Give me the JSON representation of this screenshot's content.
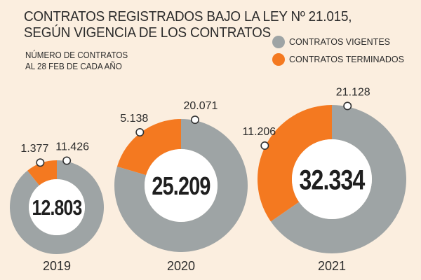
{
  "title_lines": [
    "CONTRATOS REGISTRADOS BAJO LA LEY Nº 21.015,",
    "SEGÚN VIGENCIA DE LOS CONTRATOS"
  ],
  "subtitle_lines": [
    "NÚMERO DE CONTRATOS",
    "AL 28 FEB DE CADA AÑO"
  ],
  "legend": [
    {
      "label": "CONTRATOS VIGENTES",
      "color": "#9ea4a5"
    },
    {
      "label": "CONTRATOS TERMINADOS",
      "color": "#f47920"
    }
  ],
  "chart_data": {
    "type": "donut",
    "categories": [
      "2019",
      "2020",
      "2021"
    ],
    "series": [
      {
        "name": "CONTRATOS VIGENTES",
        "values": [
          11.426,
          20.071,
          21.128
        ],
        "labels": [
          "11.426",
          "20.071",
          "21.128"
        ],
        "color": "#9ea4a5"
      },
      {
        "name": "CONTRATOS TERMINADOS",
        "values": [
          1.377,
          5.138,
          11.206
        ],
        "labels": [
          "1.377",
          "5.138",
          "11.206"
        ],
        "color": "#f47920"
      }
    ],
    "totals": [
      "12.803",
      "25.209",
      "32.334"
    ]
  }
}
